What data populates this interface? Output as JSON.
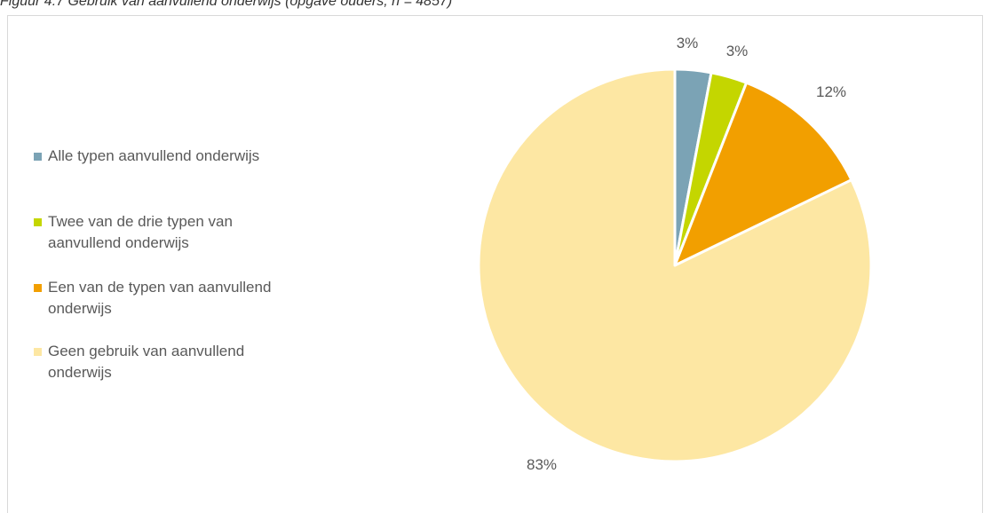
{
  "caption": "Figuur 4.7 Gebruik van aanvullend onderwijs (opgave ouders, n = 4857)",
  "chart_data": {
    "type": "pie",
    "title": "",
    "legend_position": "left",
    "categories": [
      "Alle typen aanvullend onderwijs",
      "Twee van de drie typen van aanvullend onderwijs",
      "Een van de typen van aanvullend onderwijs",
      "Geen gebruik van aanvullend onderwijs"
    ],
    "values": [
      3,
      3,
      12,
      83
    ],
    "data_labels": [
      "3%",
      "3%",
      "12%",
      "83%"
    ],
    "colors": [
      "#7ba3b5",
      "#c4d600",
      "#f29f00",
      "#fde7a3"
    ]
  }
}
